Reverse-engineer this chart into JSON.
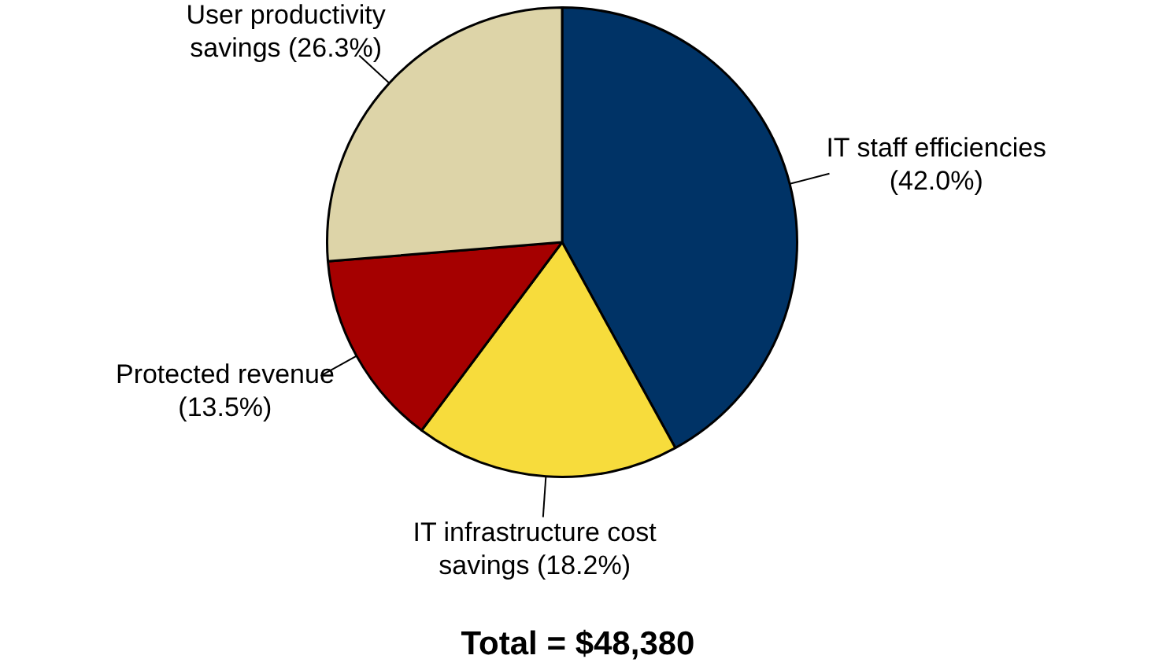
{
  "chart_data": {
    "type": "pie",
    "categories": [
      "IT staff efficiencies",
      "IT infrastructure cost savings",
      "Protected revenue",
      "User productivity savings"
    ],
    "values": [
      42.0,
      18.2,
      13.5,
      26.3
    ],
    "value_labels": [
      "(42.0%)",
      "(18.2%)",
      "(13.5%)",
      "(26.3%)"
    ],
    "colors": [
      "#003366",
      "#f7dc3c",
      "#a50000",
      "#ddd4a8"
    ],
    "annotations": [
      "Total = $48,380"
    ],
    "legend": false
  }
}
